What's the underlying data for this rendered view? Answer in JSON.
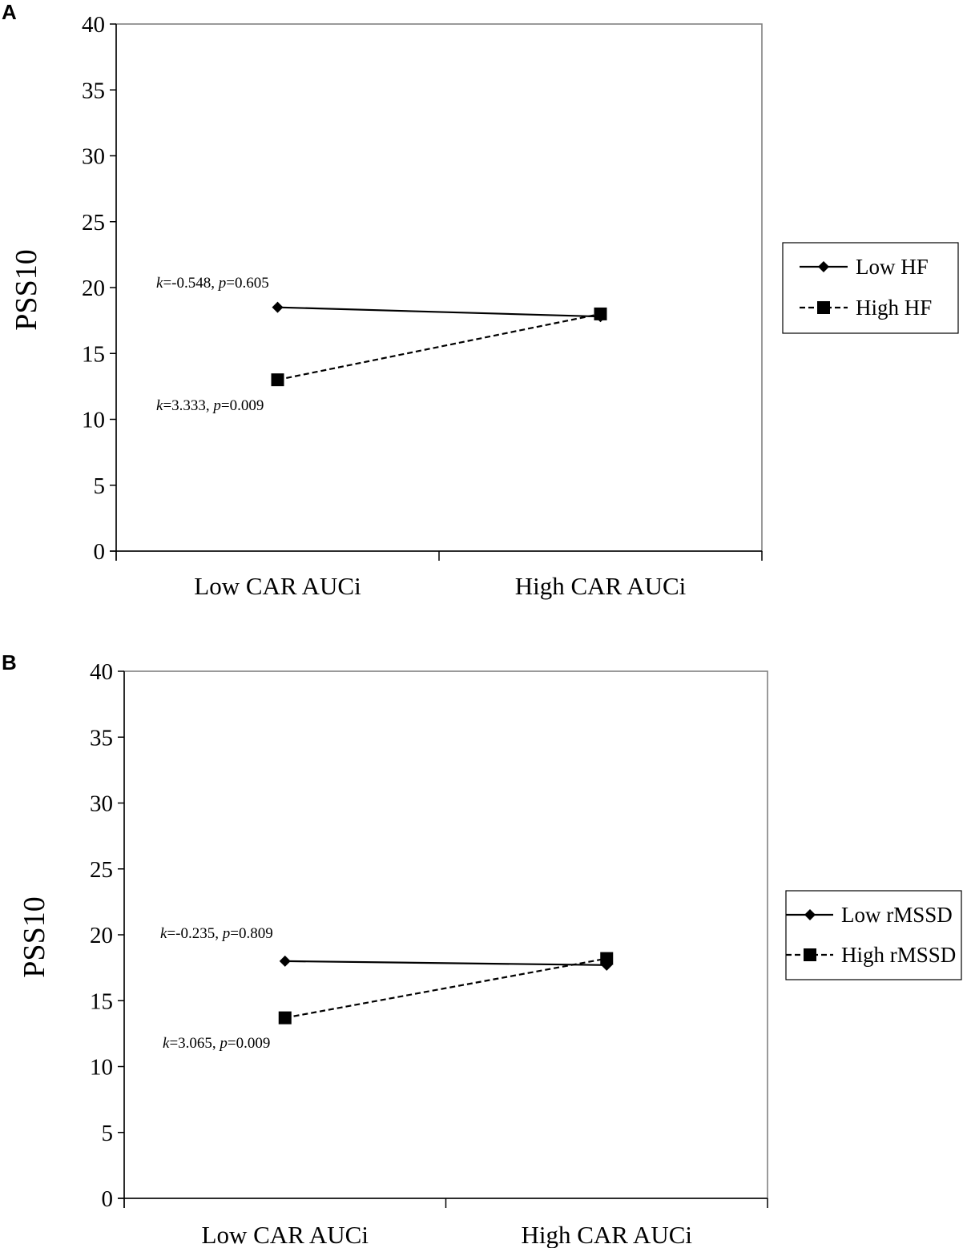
{
  "chart_data": [
    {
      "panel_label": "A",
      "type": "line",
      "categories": [
        "Low CAR AUCi",
        "High CAR AUCi"
      ],
      "ylabel": "PSS10",
      "ylim": [
        0,
        40
      ],
      "yticks": [
        0,
        5,
        10,
        15,
        20,
        25,
        30,
        35,
        40
      ],
      "grid": false,
      "legend_position": "right",
      "series": [
        {
          "name": "Low HF",
          "values": [
            18.5,
            17.8
          ],
          "line_style": "solid",
          "marker": "diamond",
          "color": "#000000"
        },
        {
          "name": "High HF",
          "values": [
            13.0,
            18.0
          ],
          "line_style": "dashed",
          "marker": "square",
          "color": "#000000"
        }
      ],
      "annotations": [
        {
          "k": "k",
          "k_val": "=-0.548, ",
          "p": "p",
          "p_val": "=0.605"
        },
        {
          "k": "k",
          "k_val": "=3.333, ",
          "p": "p",
          "p_val": "=0.009"
        }
      ]
    },
    {
      "panel_label": "B",
      "type": "line",
      "categories": [
        "Low CAR AUCi",
        "High CAR AUCi"
      ],
      "ylabel": "PSS10",
      "ylim": [
        0,
        40
      ],
      "yticks": [
        0,
        5,
        10,
        15,
        20,
        25,
        30,
        35,
        40
      ],
      "grid": false,
      "legend_position": "right",
      "series": [
        {
          "name": "Low rMSSD",
          "values": [
            18.0,
            17.7
          ],
          "line_style": "solid",
          "marker": "diamond",
          "color": "#000000"
        },
        {
          "name": "High rMSSD",
          "values": [
            13.7,
            18.2
          ],
          "line_style": "dashed",
          "marker": "square",
          "color": "#000000"
        }
      ],
      "annotations": [
        {
          "k": "k",
          "k_val": "=-0.235, ",
          "p": "p",
          "p_val": "=0.809"
        },
        {
          "k": "k",
          "k_val": "=3.065, ",
          "p": "p",
          "p_val": "=0.009"
        }
      ]
    }
  ]
}
